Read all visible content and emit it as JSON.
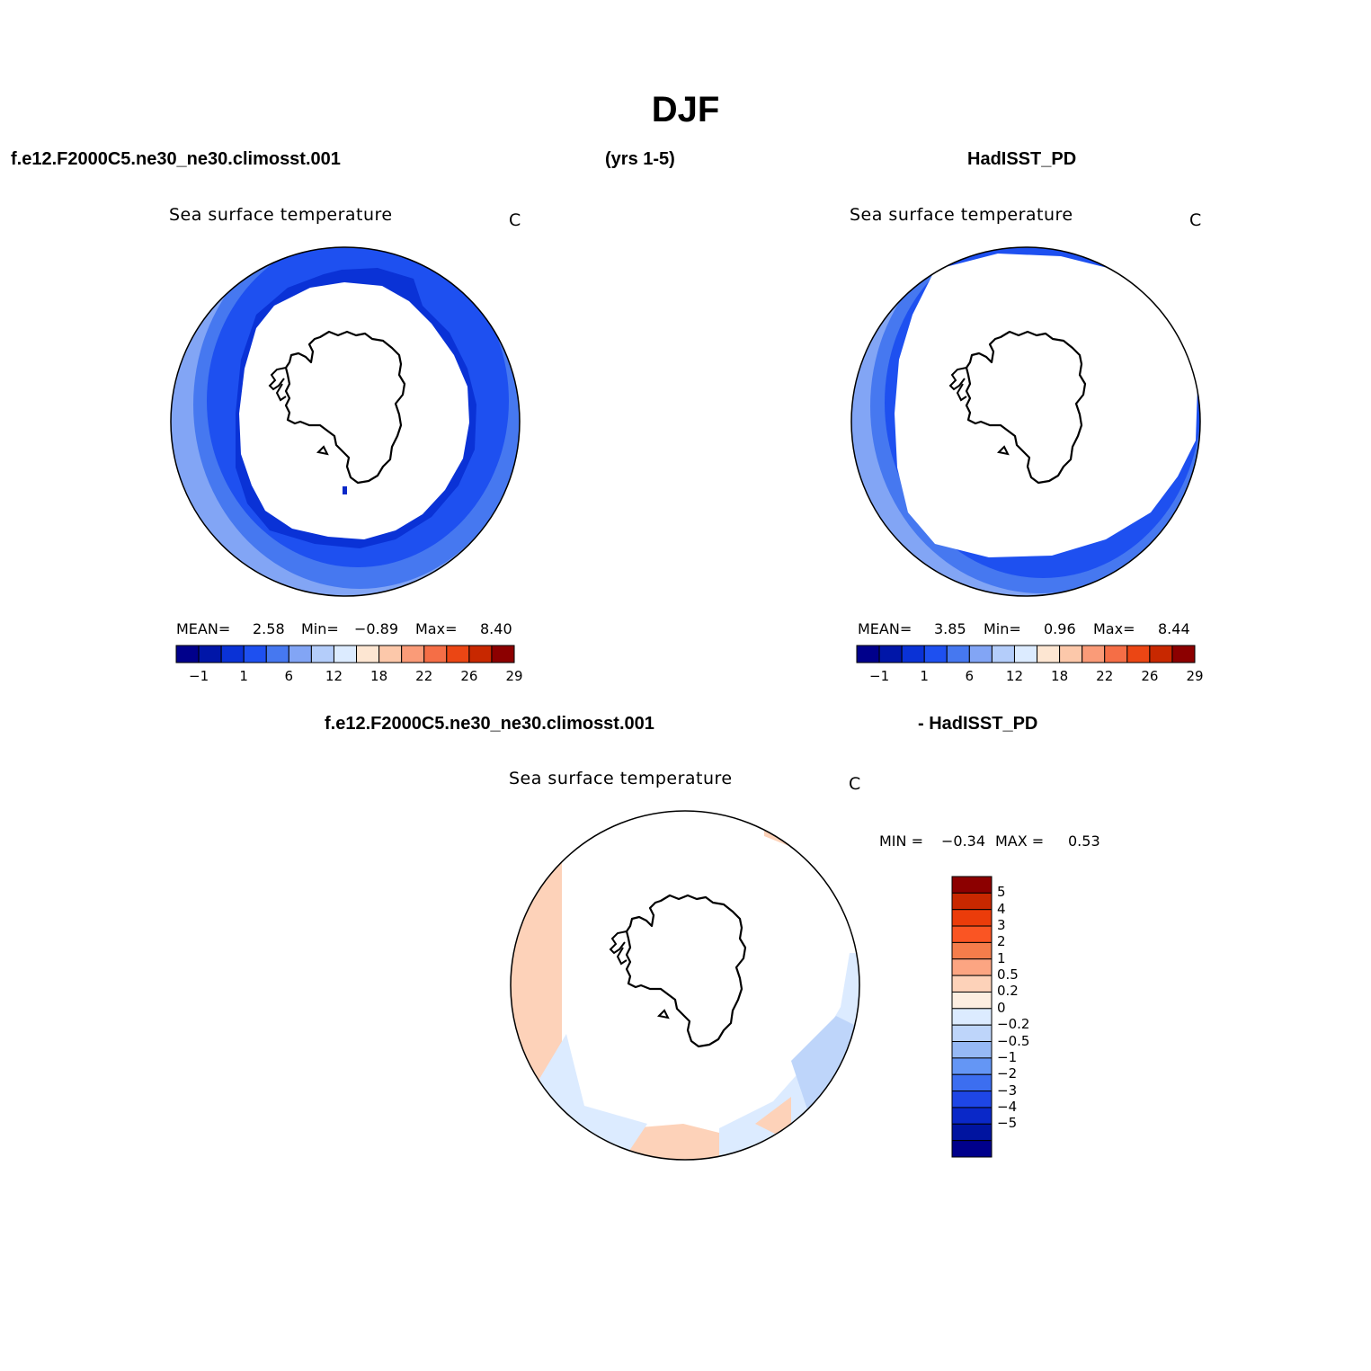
{
  "title": "DJF",
  "header": {
    "case_name": "f.e12.F2000C5.ne30_ne30.climosst.001",
    "years": "(yrs 1-5)",
    "obs_name": "HadISST_PD",
    "diff_case": "f.e12.F2000C5.ne30_ne30.climosst.001",
    "diff_obs": "- HadISST_PD"
  },
  "panels": [
    {
      "id": "model",
      "variable": "Sea surface temperature",
      "units": "C",
      "stats": {
        "mean_label": "MEAN=",
        "mean": "2.58",
        "min_label": "Min=",
        "min": "−0.89",
        "max_label": "Max=",
        "max": "8.40"
      }
    },
    {
      "id": "obs",
      "variable": "Sea surface temperature",
      "units": "C",
      "stats": {
        "mean_label": "MEAN=",
        "mean": "3.85",
        "min_label": "Min=",
        "min": "0.96",
        "max_label": "Max=",
        "max": "8.44"
      }
    },
    {
      "id": "diff",
      "variable": "Sea surface temperature",
      "units": "C",
      "stats": {
        "min_label": "MIN =",
        "min": "−0.34",
        "max_label": "MAX =",
        "max": "0.53"
      }
    }
  ],
  "colorbar_abs": {
    "colors": [
      "#00008b",
      "#0016a8",
      "#0a32d6",
      "#1e50f0",
      "#4678f0",
      "#82a5f5",
      "#b4cdfa",
      "#dcebff",
      "#fde6d2",
      "#fcc8aa",
      "#fa9b78",
      "#f56e46",
      "#eb4614",
      "#c82800",
      "#8c0000"
    ],
    "tick_labels": [
      "−1",
      "1",
      "6",
      "12",
      "18",
      "22",
      "26",
      "29"
    ]
  },
  "colorbar_diff": {
    "colors": [
      "#8c0000",
      "#c82800",
      "#eb3c0a",
      "#fa5523",
      "#f57d4b",
      "#fca582",
      "#fdd2b9",
      "#fdeee1",
      "#dcebff",
      "#bed5fa",
      "#96b9f5",
      "#6496f5",
      "#3c6ef0",
      "#1e46e6",
      "#0a28c8",
      "#0014a0",
      "#00008b"
    ],
    "tick_labels": [
      "5",
      "4",
      "3",
      "2",
      "1",
      "0.5",
      "0.2",
      "0",
      "−0.2",
      "−0.5",
      "−1",
      "−2",
      "−3",
      "−4",
      "−5"
    ]
  },
  "map": {
    "land_fill": "#ffffff",
    "coast_color": "#000000",
    "ocean_colors": {
      "model_outer": "#82a5f5",
      "model_mid": "#4678f0",
      "model_main": "#1e50f0",
      "model_ice_edge": "#0a32d6",
      "obs_outer": "#82a5f5",
      "obs_mid": "#4678f0",
      "obs_main": "#1e50f0",
      "diff_warm": "#fdd2b9",
      "diff_cool": "#dcebff",
      "diff_cool2": "#bed5fa"
    }
  }
}
